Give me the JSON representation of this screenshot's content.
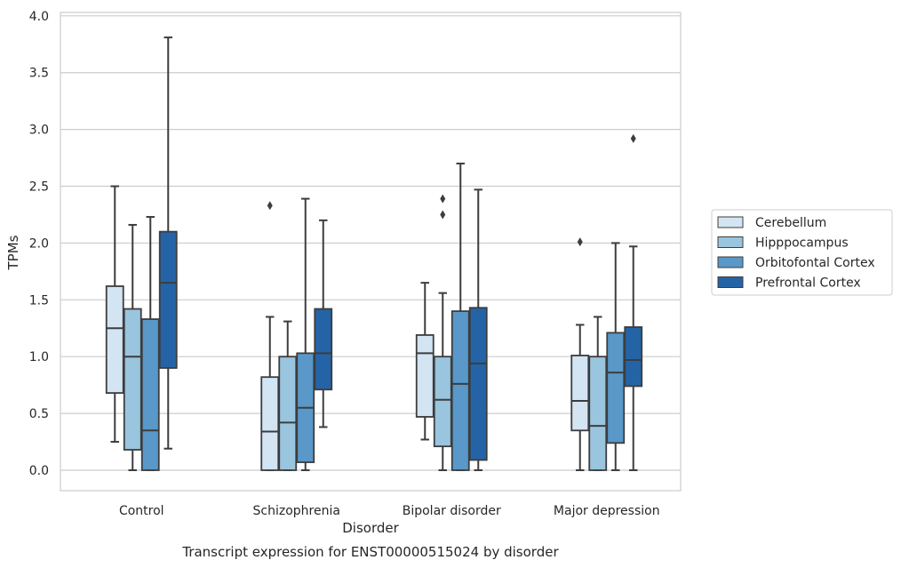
{
  "chart_data": {
    "type": "box",
    "title": "",
    "caption": "Transcript expression for ENST00000515024 by disorder",
    "xlabel": "Disorder",
    "ylabel": "TPMs",
    "ylim": [
      -0.18,
      4.03
    ],
    "yticks": [
      "0.0",
      "0.5",
      "1.0",
      "1.5",
      "2.0",
      "2.5",
      "3.0",
      "3.5",
      "4.0"
    ],
    "ytick_values": [
      0,
      0.5,
      1.0,
      1.5,
      2.0,
      2.5,
      3.0,
      3.5,
      4.0
    ],
    "grid": "horizontal",
    "legend_position": "right",
    "categories": [
      "Control",
      "Schizophrenia",
      "Bipolar disorder",
      "Major depression"
    ],
    "series": [
      {
        "name": "Cerebellum",
        "color": "#d3e4f3",
        "boxes": [
          {
            "whislo": 0.25,
            "q1": 0.68,
            "med": 1.25,
            "q3": 1.62,
            "whishi": 2.5,
            "fliers": []
          },
          {
            "whislo": 0.0,
            "q1": 0.0,
            "med": 0.34,
            "q3": 0.82,
            "whishi": 1.35,
            "fliers": [
              2.33
            ]
          },
          {
            "whislo": 0.27,
            "q1": 0.47,
            "med": 1.03,
            "q3": 1.19,
            "whishi": 1.65,
            "fliers": []
          },
          {
            "whislo": 0.0,
            "q1": 0.35,
            "med": 0.61,
            "q3": 1.01,
            "whishi": 1.28,
            "fliers": [
              2.01
            ]
          }
        ]
      },
      {
        "name": "Hipppocampus",
        "color": "#9ac5de",
        "boxes": [
          {
            "whislo": 0.0,
            "q1": 0.18,
            "med": 1.0,
            "q3": 1.42,
            "whishi": 2.16,
            "fliers": []
          },
          {
            "whislo": 0.0,
            "q1": 0.0,
            "med": 0.42,
            "q3": 1.0,
            "whishi": 1.31,
            "fliers": []
          },
          {
            "whislo": 0.0,
            "q1": 0.21,
            "med": 0.62,
            "q3": 1.0,
            "whishi": 1.56,
            "fliers": [
              2.25,
              2.39
            ]
          },
          {
            "whislo": 0.0,
            "q1": 0.0,
            "med": 0.39,
            "q3": 1.0,
            "whishi": 1.35,
            "fliers": []
          }
        ]
      },
      {
        "name": "Orbitofontal Cortex",
        "color": "#5998c8",
        "boxes": [
          {
            "whislo": 0.0,
            "q1": 0.0,
            "med": 0.35,
            "q3": 1.33,
            "whishi": 2.23,
            "fliers": []
          },
          {
            "whislo": 0.0,
            "q1": 0.07,
            "med": 0.55,
            "q3": 1.03,
            "whishi": 2.39,
            "fliers": []
          },
          {
            "whislo": 0.0,
            "q1": 0.0,
            "med": 0.76,
            "q3": 1.4,
            "whishi": 2.7,
            "fliers": []
          },
          {
            "whislo": 0.0,
            "q1": 0.24,
            "med": 0.86,
            "q3": 1.21,
            "whishi": 2.0,
            "fliers": []
          }
        ]
      },
      {
        "name": "Prefrontal Cortex",
        "color": "#2464a6",
        "boxes": [
          {
            "whislo": 0.19,
            "q1": 0.9,
            "med": 1.65,
            "q3": 2.1,
            "whishi": 3.81,
            "fliers": []
          },
          {
            "whislo": 0.38,
            "q1": 0.71,
            "med": 1.03,
            "q3": 1.42,
            "whishi": 2.2,
            "fliers": []
          },
          {
            "whislo": 0.0,
            "q1": 0.09,
            "med": 0.94,
            "q3": 1.43,
            "whishi": 2.47,
            "fliers": []
          },
          {
            "whislo": 0.0,
            "q1": 0.74,
            "med": 0.97,
            "q3": 1.26,
            "whishi": 1.97,
            "fliers": [
              2.92
            ]
          }
        ]
      }
    ]
  }
}
